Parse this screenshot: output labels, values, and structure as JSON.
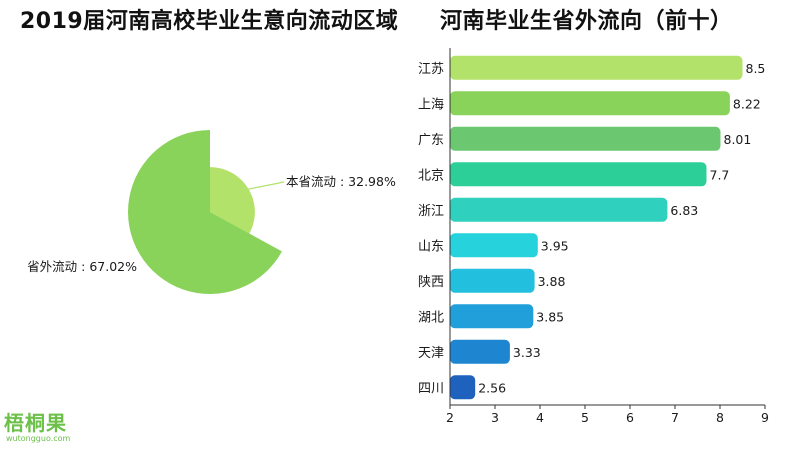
{
  "titles": {
    "left": "2019届河南高校毕业生意向流动区域",
    "right": "河南毕业生省外流向（前十）"
  },
  "logo": {
    "main": "梧桐果",
    "sub": "wutongguo.com"
  },
  "chart_data": [
    {
      "type": "pie",
      "title": "2019届河南高校毕业生意向流动区域",
      "slices": [
        {
          "label": "本省流动",
          "value": 32.98,
          "display": "32.98%",
          "color": "#b3e26a"
        },
        {
          "label": "省外流动",
          "value": 67.02,
          "display": "67.02%",
          "color": "#8ad35a"
        }
      ],
      "label_separator": " : "
    },
    {
      "type": "bar",
      "orientation": "horizontal",
      "title": "河南毕业生省外流向（前十）",
      "categories": [
        "江苏",
        "上海",
        "广东",
        "北京",
        "浙江",
        "山东",
        "陕西",
        "湖北",
        "天津",
        "四川"
      ],
      "values": [
        8.5,
        8.22,
        8.01,
        7.7,
        6.83,
        3.95,
        3.88,
        3.85,
        3.33,
        2.56
      ],
      "labels": [
        "8.5",
        "8.22",
        "8.01",
        "7.7",
        "6.83",
        "3.95",
        "3.88",
        "3.85",
        "3.33",
        "2.56"
      ],
      "colors": [
        "#b3e26a",
        "#8ad35a",
        "#6cc870",
        "#2dcf98",
        "#2fd0bd",
        "#26d2dc",
        "#22c0de",
        "#209fda",
        "#1e86d0",
        "#1f62bd"
      ],
      "xlim": [
        2,
        9
      ],
      "xticks": [
        "2",
        "3",
        "4",
        "5",
        "6",
        "7",
        "8",
        "9"
      ],
      "grid": false
    }
  ]
}
